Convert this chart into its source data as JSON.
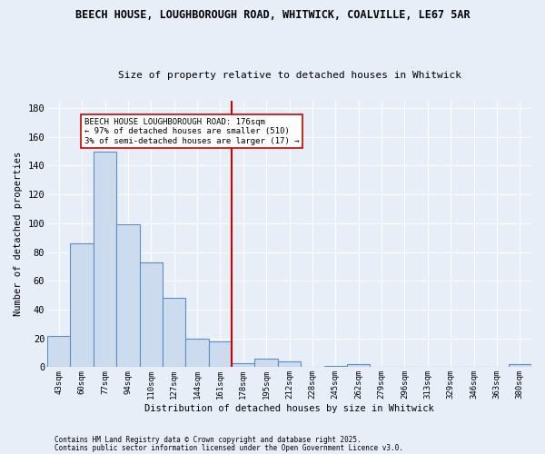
{
  "title": "BEECH HOUSE, LOUGHBOROUGH ROAD, WHITWICK, COALVILLE, LE67 5AR",
  "subtitle": "Size of property relative to detached houses in Whitwick",
  "xlabel": "Distribution of detached houses by size in Whitwick",
  "ylabel": "Number of detached properties",
  "categories": [
    "43sqm",
    "60sqm",
    "77sqm",
    "94sqm",
    "110sqm",
    "127sqm",
    "144sqm",
    "161sqm",
    "178sqm",
    "195sqm",
    "212sqm",
    "228sqm",
    "245sqm",
    "262sqm",
    "279sqm",
    "296sqm",
    "313sqm",
    "329sqm",
    "346sqm",
    "363sqm",
    "380sqm"
  ],
  "heights": [
    22,
    86,
    150,
    99,
    73,
    48,
    20,
    18,
    3,
    6,
    4,
    0,
    1,
    2,
    0,
    0,
    0,
    0,
    0,
    0,
    2
  ],
  "bar_color": "#ccdcee",
  "bar_edge_color": "#5b8ec4",
  "background_color": "#e8eef8",
  "grid_color": "#ffffff",
  "vline_x_index": 8,
  "vline_color": "#cc0000",
  "annotation_text": "BEECH HOUSE LOUGHBOROUGH ROAD: 176sqm\n← 97% of detached houses are smaller (510)\n3% of semi-detached houses are larger (17) →",
  "annotation_box_color": "#ffffff",
  "annotation_box_edge": "#cc0000",
  "ylim": [
    0,
    185
  ],
  "yticks": [
    0,
    20,
    40,
    60,
    80,
    100,
    120,
    140,
    160,
    180
  ],
  "footnote1": "Contains HM Land Registry data © Crown copyright and database right 2025.",
  "footnote2": "Contains public sector information licensed under the Open Government Licence v3.0."
}
